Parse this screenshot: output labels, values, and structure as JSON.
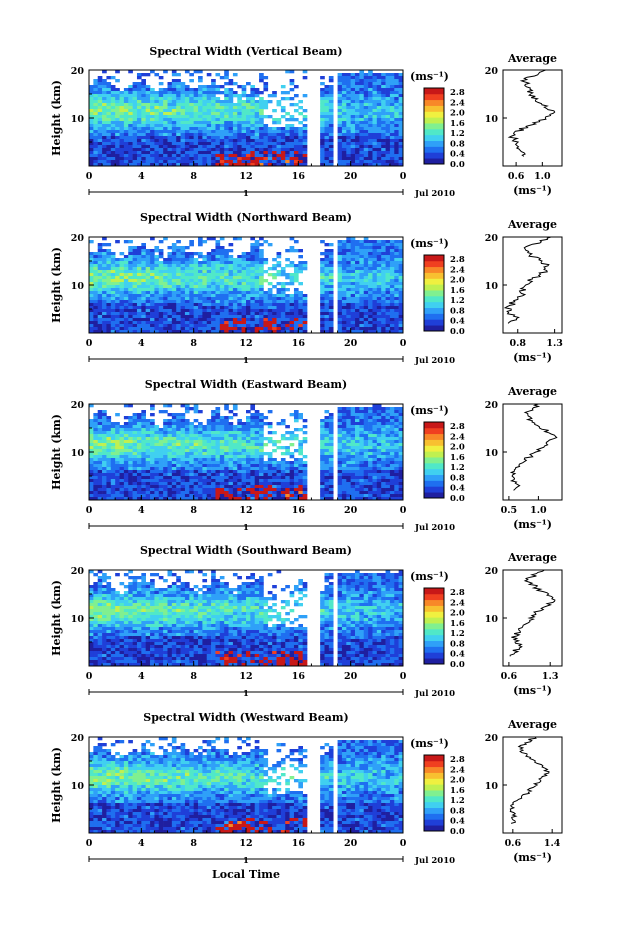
{
  "colormap": [
    "#1f1fa0",
    "#1f3fd8",
    "#1f6ff0",
    "#2fa0f8",
    "#40d0f0",
    "#50e8c8",
    "#80f090",
    "#c0f050",
    "#f0f040",
    "#f8c030",
    "#f88828",
    "#f04020",
    "#c81818"
  ],
  "colorbar_labels": [
    "2.8",
    "2.4",
    "2.0",
    "1.6",
    "1.2",
    "0.8",
    "0.4",
    "0.0"
  ],
  "colorbar_unit": "(ms⁻¹)",
  "x_ticks": [
    "0",
    "4",
    "8",
    "12",
    "16",
    "20",
    "0"
  ],
  "date_day": "1",
  "date_label": "Jul 2010",
  "y_label": "Height (km)",
  "y_ticks": [
    "20",
    "10"
  ],
  "avg_title": "Average",
  "avg_unit": "(ms⁻¹)",
  "x_axis_label": "Local Time",
  "chart_data": [
    {
      "type": "heatmap",
      "title": "Spectral Width (Vertical Beam)",
      "x_range": [
        0,
        24
      ],
      "y_range": [
        0,
        20
      ],
      "xlabel": "",
      "ylabel": "Height (km)",
      "colorbar_range": [
        0.0,
        3.0
      ],
      "profile": {
        "title": "Average",
        "xlabel": "(ms⁻¹)",
        "x_ticks": [
          "0.6",
          "1.0"
        ],
        "x_range": [
          0.4,
          1.3
        ],
        "heights": [
          2,
          3,
          4,
          5,
          6,
          7,
          8,
          9,
          10,
          11,
          12,
          13,
          14,
          15,
          16,
          17,
          18,
          19,
          20
        ],
        "values": [
          0.75,
          0.72,
          0.65,
          0.58,
          0.55,
          0.6,
          0.72,
          0.9,
          1.05,
          1.15,
          1.12,
          1.0,
          0.9,
          0.8,
          0.78,
          0.75,
          0.72,
          0.9,
          1.05
        ]
      }
    },
    {
      "type": "heatmap",
      "title": "Spectral Width (Northward Beam)",
      "x_range": [
        0,
        24
      ],
      "y_range": [
        0,
        20
      ],
      "xlabel": "",
      "ylabel": "Height (km)",
      "colorbar_range": [
        0.0,
        3.0
      ],
      "profile": {
        "title": "Average",
        "xlabel": "(ms⁻¹)",
        "x_ticks": [
          "0.8",
          "1.3"
        ],
        "x_range": [
          0.6,
          1.4
        ],
        "heights": [
          2,
          3,
          4,
          5,
          6,
          7,
          8,
          9,
          10,
          11,
          12,
          13,
          14,
          15,
          16,
          17,
          18,
          19,
          20
        ],
        "values": [
          0.7,
          0.78,
          0.72,
          0.68,
          0.72,
          0.8,
          0.86,
          0.88,
          0.9,
          0.98,
          1.08,
          1.2,
          1.22,
          1.12,
          1.0,
          0.9,
          0.95,
          1.1,
          1.25
        ]
      }
    },
    {
      "type": "heatmap",
      "title": "Spectral Width (Eastward Beam)",
      "x_range": [
        0,
        24
      ],
      "y_range": [
        0,
        20
      ],
      "xlabel": "",
      "ylabel": "Height (km)",
      "colorbar_range": [
        0.0,
        3.0
      ],
      "profile": {
        "title": "Average",
        "xlabel": "(ms⁻¹)",
        "x_ticks": [
          "0.5",
          "1.0"
        ],
        "x_range": [
          0.4,
          1.4
        ],
        "heights": [
          2,
          3,
          4,
          5,
          6,
          7,
          8,
          9,
          10,
          11,
          12,
          13,
          14,
          15,
          16,
          17,
          18,
          19,
          20
        ],
        "values": [
          0.6,
          0.65,
          0.6,
          0.55,
          0.6,
          0.68,
          0.75,
          0.85,
          0.95,
          1.05,
          1.15,
          1.25,
          1.2,
          1.05,
          0.95,
          0.85,
          0.8,
          0.9,
          1.0
        ]
      }
    },
    {
      "type": "heatmap",
      "title": "Spectral Width (Southward Beam)",
      "x_range": [
        0,
        24
      ],
      "y_range": [
        0,
        20
      ],
      "xlabel": "",
      "ylabel": "Height (km)",
      "colorbar_range": [
        0.0,
        3.0
      ],
      "profile": {
        "title": "Average",
        "xlabel": "(ms⁻¹)",
        "x_ticks": [
          "0.6",
          "1.3"
        ],
        "x_range": [
          0.5,
          1.5
        ],
        "heights": [
          2,
          3,
          4,
          5,
          6,
          7,
          8,
          9,
          10,
          11,
          12,
          13,
          14,
          15,
          16,
          17,
          18,
          19,
          20
        ],
        "values": [
          0.65,
          0.7,
          0.78,
          0.72,
          0.7,
          0.75,
          0.82,
          0.9,
          0.98,
          1.05,
          1.15,
          1.3,
          1.38,
          1.25,
          1.1,
          1.0,
          0.9,
          1.05,
          1.2
        ]
      }
    },
    {
      "type": "heatmap",
      "title": "Spectral Width (Westward Beam)",
      "x_range": [
        0,
        24
      ],
      "y_range": [
        0,
        20
      ],
      "xlabel": "",
      "ylabel": "Height (km)",
      "colorbar_range": [
        0.0,
        3.0
      ],
      "profile": {
        "title": "Average",
        "xlabel": "(ms⁻¹)",
        "x_ticks": [
          "0.6",
          "1.4"
        ],
        "x_range": [
          0.4,
          1.6
        ],
        "heights": [
          2,
          3,
          4,
          5,
          6,
          7,
          8,
          9,
          10,
          11,
          12,
          13,
          14,
          15,
          16,
          17,
          18,
          19,
          20
        ],
        "values": [
          0.6,
          0.62,
          0.6,
          0.58,
          0.62,
          0.72,
          0.85,
          0.95,
          1.05,
          1.15,
          1.25,
          1.3,
          1.2,
          1.05,
          0.9,
          0.8,
          0.78,
          0.9,
          1.05
        ]
      }
    }
  ]
}
